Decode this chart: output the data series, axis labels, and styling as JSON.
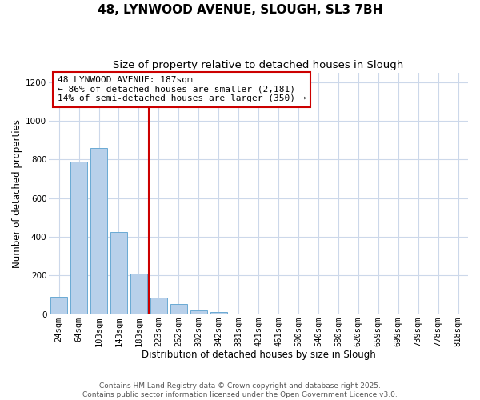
{
  "title": "48, LYNWOOD AVENUE, SLOUGH, SL3 7BH",
  "subtitle": "Size of property relative to detached houses in Slough",
  "xlabel": "Distribution of detached houses by size in Slough",
  "ylabel": "Number of detached properties",
  "bar_labels": [
    "24sqm",
    "64sqm",
    "103sqm",
    "143sqm",
    "183sqm",
    "223sqm",
    "262sqm",
    "302sqm",
    "342sqm",
    "381sqm",
    "421sqm",
    "461sqm",
    "500sqm",
    "540sqm",
    "580sqm",
    "620sqm",
    "659sqm",
    "699sqm",
    "739sqm",
    "778sqm",
    "818sqm"
  ],
  "bar_values": [
    90,
    790,
    860,
    425,
    210,
    85,
    50,
    20,
    10,
    2,
    0,
    0,
    0,
    0,
    0,
    0,
    0,
    0,
    0,
    0,
    0
  ],
  "bar_color": "#b8d0ea",
  "bar_edge_color": "#6aaad4",
  "marker_label": "48 LYNWOOD AVENUE: 187sqm",
  "annotation_line1": "← 86% of detached houses are smaller (2,181)",
  "annotation_line2": "14% of semi-detached houses are larger (350) →",
  "vline_color": "#cc0000",
  "box_edge_color": "#cc0000",
  "ylim": [
    0,
    1250
  ],
  "yticks": [
    0,
    200,
    400,
    600,
    800,
    1000,
    1200
  ],
  "background_color": "#ffffff",
  "grid_color": "#ccd8ea",
  "footer1": "Contains HM Land Registry data © Crown copyright and database right 2025.",
  "footer2": "Contains public sector information licensed under the Open Government Licence v3.0.",
  "title_fontsize": 11,
  "subtitle_fontsize": 9.5,
  "axis_label_fontsize": 8.5,
  "tick_fontsize": 7.5,
  "annotation_fontsize": 8,
  "footer_fontsize": 6.5
}
